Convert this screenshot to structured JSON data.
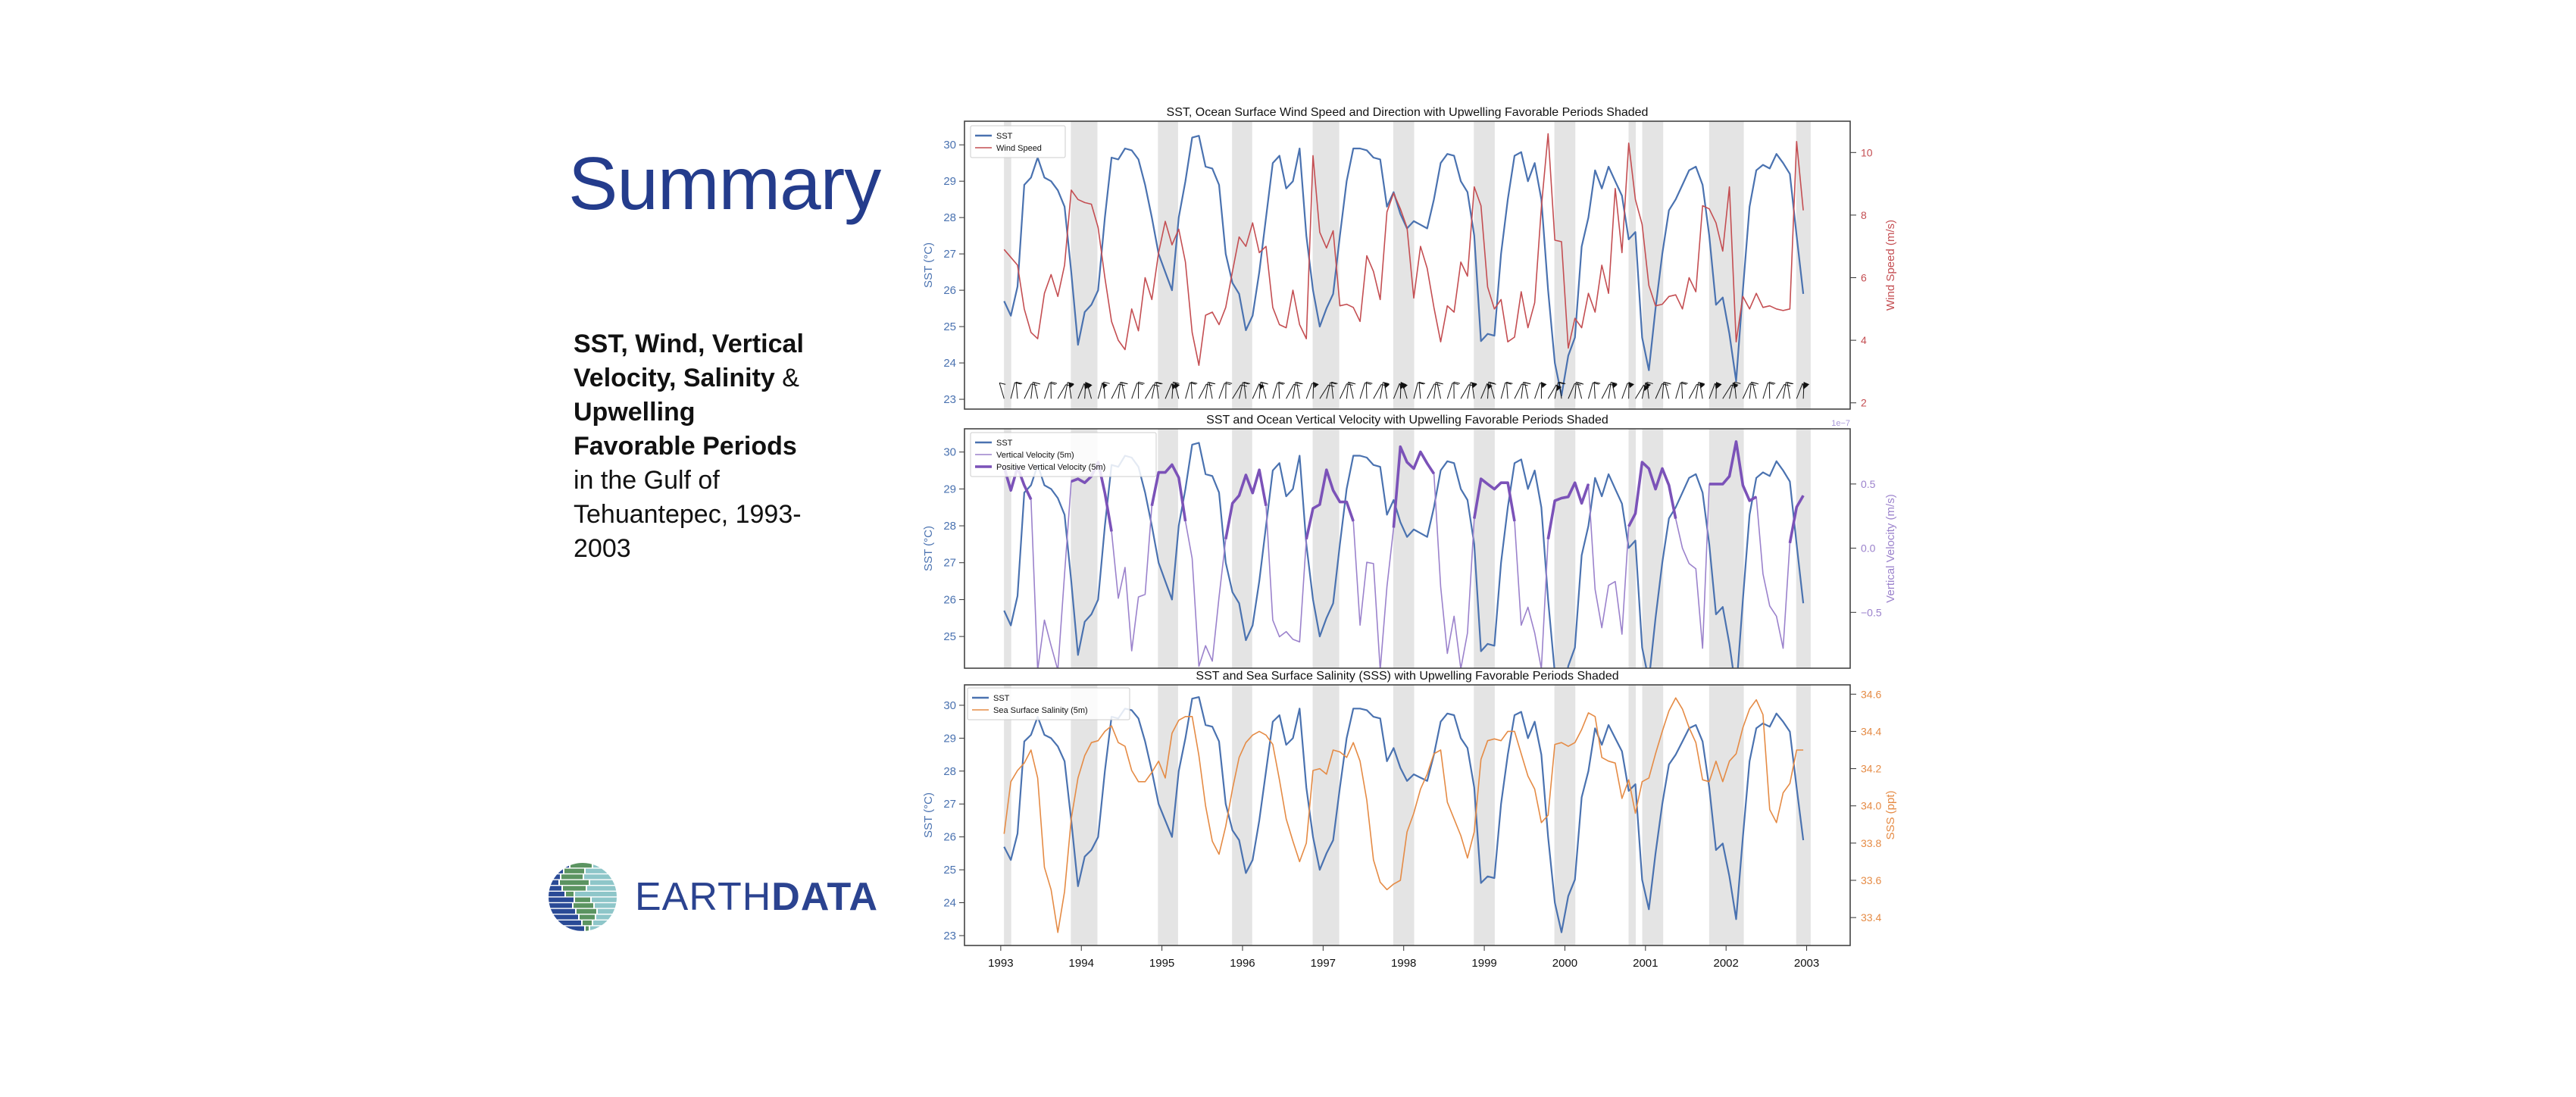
{
  "slide": {
    "title": "Summary",
    "subtitle_bold_1": "SST, Wind, Vertical Velocity, Salinity",
    "subtitle_plain_1": " & ",
    "subtitle_bold_2": "Upwelling Favorable Periods",
    "subtitle_plain_2": " in the Gulf of Tehuantepec, 1993-2003"
  },
  "logo": {
    "text_light": "EARTH",
    "text_bold": "DATA",
    "icon": "earth-globe-stripes-icon"
  },
  "colors": {
    "title": "#243c8c",
    "sst": "#4a72b0",
    "wind": "#c44e52",
    "vv_thin": "#9b82cc",
    "vv_thick": "#7b52b8",
    "sss": "#e58b45",
    "shade": "#e4e4e4"
  },
  "chart_data": [
    {
      "type": "line",
      "title": "SST, Ocean Surface Wind Speed and Direction with Upwelling Favorable Periods Shaded",
      "time": {
        "start": "1993-01",
        "step": "monthly"
      },
      "xlim": [
        1992.55,
        2003.54
      ],
      "x_tick_labels": [],
      "grid": false,
      "legend": "top-left",
      "wind_barbs": true,
      "shaded_periods": [
        [
          1993.04,
          1993.13
        ],
        [
          1993.87,
          1994.2
        ],
        [
          1994.95,
          1995.2
        ],
        [
          1995.87,
          1996.12
        ],
        [
          1996.87,
          1997.2
        ],
        [
          1997.87,
          1998.13
        ],
        [
          1998.87,
          1999.13
        ],
        [
          1999.87,
          2000.13
        ],
        [
          2000.79,
          2000.88
        ],
        [
          2000.96,
          2001.22
        ],
        [
          2001.79,
          2002.22
        ],
        [
          2002.87,
          2003.05
        ]
      ],
      "left_axis": {
        "label": "SST (°C)",
        "ylim": [
          22.73,
          30.65
        ],
        "tick_labels": [
          "23",
          "24",
          "25",
          "26",
          "27",
          "28",
          "29",
          "30"
        ]
      },
      "right_axis": {
        "label": "Wind Speed (m/s)",
        "ylim": [
          1.8,
          11.0
        ],
        "tick_labels": [
          "2",
          "4",
          "6",
          "8",
          "10"
        ],
        "offset_label": ""
      },
      "series": [
        {
          "name": "SST",
          "axis": "left",
          "color": "#4a72b0",
          "values": [
            25.7,
            25.3,
            26.1,
            28.9,
            29.1,
            29.65,
            29.1,
            29.0,
            28.75,
            28.3,
            26.5,
            24.5,
            25.4,
            25.6,
            26.0,
            28.0,
            29.65,
            29.6,
            29.9,
            29.85,
            29.6,
            28.9,
            28.0,
            27.0,
            26.5,
            26.0,
            28.0,
            29.0,
            30.2,
            30.25,
            29.4,
            29.35,
            28.9,
            27.0,
            26.2,
            25.9,
            24.9,
            25.3,
            26.5,
            28.0,
            29.5,
            29.7,
            28.8,
            29.0,
            29.9,
            27.5,
            26.0,
            25.0,
            25.5,
            25.9,
            27.5,
            29.0,
            29.9,
            29.9,
            29.85,
            29.65,
            29.6,
            28.3,
            28.7,
            28.1,
            27.7,
            27.9,
            27.8,
            27.7,
            28.5,
            29.5,
            29.75,
            29.7,
            29.0,
            28.7,
            27.5,
            24.6,
            24.8,
            24.75,
            27.0,
            28.5,
            29.7,
            29.8,
            29.0,
            29.5,
            28.5,
            26.0,
            24.0,
            23.1,
            24.2,
            24.7,
            27.2,
            28.0,
            29.3,
            28.8,
            29.4,
            29.0,
            28.6,
            27.4,
            27.6,
            24.7,
            23.8,
            25.5,
            27.0,
            28.2,
            28.5,
            28.9,
            29.3,
            29.4,
            28.9,
            27.5,
            25.6,
            25.8,
            24.8,
            23.5,
            26.0,
            28.3,
            29.3,
            29.45,
            29.35,
            29.75,
            29.5,
            29.2,
            27.5,
            25.9
          ]
        },
        {
          "name": "Wind Speed",
          "axis": "right",
          "color": "#c44e52",
          "values": [
            6.9,
            6.65,
            6.4,
            5.0,
            4.25,
            4.05,
            5.5,
            6.1,
            5.4,
            6.4,
            8.8,
            8.5,
            8.4,
            8.35,
            7.6,
            6.0,
            4.6,
            4.0,
            3.7,
            5.0,
            4.3,
            6.0,
            5.3,
            6.8,
            7.8,
            7.05,
            7.55,
            6.5,
            4.25,
            3.2,
            4.8,
            4.9,
            4.5,
            5.05,
            6.2,
            7.3,
            7.0,
            7.75,
            6.8,
            7.0,
            5.05,
            4.5,
            4.4,
            5.6,
            4.5,
            4.05,
            9.9,
            7.45,
            6.95,
            7.5,
            5.1,
            5.15,
            5.05,
            4.6,
            6.7,
            6.2,
            5.3,
            8.1,
            8.7,
            8.2,
            7.6,
            5.35,
            7.0,
            6.3,
            5.05,
            3.95,
            5.1,
            4.9,
            6.5,
            6.05,
            8.9,
            8.3,
            5.7,
            5.0,
            5.3,
            3.95,
            4.1,
            5.55,
            4.4,
            5.2,
            8.25,
            10.6,
            7.2,
            7.15,
            3.75,
            4.7,
            4.4,
            5.5,
            4.9,
            6.4,
            5.5,
            8.85,
            6.8,
            10.3,
            8.5,
            7.7,
            5.75,
            5.1,
            5.15,
            5.4,
            5.45,
            5.0,
            6.0,
            5.55,
            8.3,
            8.2,
            7.75,
            6.85,
            8.9,
            3.95,
            5.4,
            5.0,
            5.5,
            5.05,
            5.1,
            5.0,
            4.95,
            5.0,
            10.35,
            8.15
          ]
        }
      ]
    },
    {
      "type": "line",
      "title": "SST and Ocean Vertical Velocity with Upwelling Favorable Periods Shaded",
      "time": {
        "start": "1993-01",
        "step": "monthly"
      },
      "xlim": [
        1992.55,
        2003.54
      ],
      "x_tick_labels": [],
      "grid": false,
      "legend": "top-left",
      "shaded_periods": [
        [
          1993.04,
          1993.13
        ],
        [
          1993.87,
          1994.2
        ],
        [
          1994.95,
          1995.2
        ],
        [
          1995.87,
          1996.12
        ],
        [
          1996.87,
          1997.2
        ],
        [
          1997.87,
          1998.13
        ],
        [
          1998.87,
          1999.13
        ],
        [
          1999.87,
          2000.13
        ],
        [
          2000.79,
          2000.88
        ],
        [
          2000.96,
          2001.22
        ],
        [
          2001.79,
          2002.22
        ],
        [
          2002.87,
          2003.05
        ]
      ],
      "left_axis": {
        "label": "SST (°C)",
        "ylim": [
          24.14,
          30.63
        ],
        "tick_labels": [
          "25",
          "26",
          "27",
          "28",
          "29",
          "30"
        ]
      },
      "right_axis": {
        "label": "Vertical Velocity (m/s)",
        "ylim": [
          -0.935,
          0.93
        ],
        "tick_labels": [
          "0.5",
          "0.0",
          "−0.5"
        ],
        "offset_label": "1e−7"
      },
      "series": [
        {
          "name": "SST",
          "axis": "left",
          "color": "#4a72b0",
          "values": [
            25.7,
            25.3,
            26.1,
            28.9,
            29.1,
            29.65,
            29.1,
            29.0,
            28.75,
            28.3,
            26.5,
            24.5,
            25.4,
            25.6,
            26.0,
            28.0,
            29.65,
            29.6,
            29.9,
            29.85,
            29.6,
            28.9,
            28.0,
            27.0,
            26.5,
            26.0,
            28.0,
            29.0,
            30.2,
            30.25,
            29.4,
            29.35,
            28.9,
            27.0,
            26.2,
            25.9,
            24.9,
            25.3,
            26.5,
            28.0,
            29.5,
            29.7,
            28.8,
            29.0,
            29.9,
            27.5,
            26.0,
            25.0,
            25.5,
            25.9,
            27.5,
            29.0,
            29.9,
            29.9,
            29.85,
            29.65,
            29.6,
            28.3,
            28.7,
            28.1,
            27.7,
            27.9,
            27.8,
            27.7,
            28.5,
            29.5,
            29.75,
            29.7,
            29.0,
            28.7,
            27.5,
            24.6,
            24.8,
            24.75,
            27.0,
            28.5,
            29.7,
            29.8,
            29.0,
            29.5,
            28.5,
            26.0,
            24.0,
            23.1,
            24.2,
            24.7,
            27.2,
            28.0,
            29.3,
            28.8,
            29.4,
            29.0,
            28.6,
            27.4,
            27.6,
            24.7,
            23.8,
            25.5,
            27.0,
            28.2,
            28.5,
            28.9,
            29.3,
            29.4,
            28.9,
            27.5,
            25.6,
            25.8,
            24.8,
            23.5,
            26.0,
            28.3,
            29.3,
            29.45,
            29.35,
            29.75,
            29.5,
            29.2,
            27.5,
            25.9
          ]
        },
        {
          "name": "Vertical Velocity (5m)",
          "axis": "right",
          "color": "#9b82cc",
          "values": [
            0.63,
            0.45,
            0.63,
            0.49,
            0.38,
            -0.95,
            -0.56,
            -0.76,
            -0.95,
            -0.2,
            0.52,
            0.54,
            0.51,
            0.56,
            0.67,
            0.43,
            0.13,
            -0.39,
            -0.15,
            -0.8,
            -0.38,
            -0.36,
            0.33,
            0.59,
            0.59,
            0.65,
            0.55,
            0.21,
            -0.08,
            -0.92,
            -0.76,
            -0.88,
            -0.38,
            0.07,
            0.35,
            0.41,
            0.57,
            0.43,
            0.61,
            0.33,
            -0.56,
            -0.69,
            -0.65,
            -0.71,
            -0.73,
            0.07,
            0.31,
            0.34,
            0.61,
            0.45,
            0.36,
            0.36,
            0.21,
            -0.6,
            -0.11,
            -0.12,
            -0.95,
            -0.3,
            0.16,
            0.79,
            0.67,
            0.62,
            0.75,
            0.66,
            0.58,
            -0.3,
            -0.82,
            -0.53,
            -0.94,
            -0.66,
            0.23,
            0.54,
            0.5,
            0.46,
            0.51,
            0.51,
            0.21,
            -0.6,
            -0.46,
            -0.66,
            -0.94,
            0.07,
            0.37,
            0.39,
            0.4,
            0.51,
            0.35,
            0.5,
            -0.32,
            -0.62,
            -0.29,
            -0.26,
            -0.67,
            0.17,
            0.27,
            0.67,
            0.62,
            0.46,
            0.62,
            0.49,
            0.23,
            0.0,
            -0.12,
            -0.16,
            -0.78,
            0.5,
            0.5,
            0.5,
            0.56,
            0.83,
            0.49,
            0.37,
            0.4,
            -0.2,
            -0.45,
            -0.53,
            -0.78,
            0.04,
            0.32,
            0.41
          ]
        },
        {
          "name": "Positive Vertical Velocity (5m)",
          "axis": "right",
          "color": "#7b52b8",
          "derived_from": "Vertical Velocity (5m)",
          "condition": "> 0"
        }
      ]
    },
    {
      "type": "line",
      "title": "SST and Sea Surface Salinity (SSS) with Upwelling Favorable Periods Shaded",
      "time": {
        "start": "1993-01",
        "step": "monthly"
      },
      "xlim": [
        1992.55,
        2003.54
      ],
      "x_tick_labels": [
        "1993",
        "1994",
        "1995",
        "1996",
        "1997",
        "1998",
        "1999",
        "2000",
        "2001",
        "2002",
        "2003"
      ],
      "grid": false,
      "legend": "top-left",
      "shaded_periods": [
        [
          1993.04,
          1993.13
        ],
        [
          1993.87,
          1994.2
        ],
        [
          1994.95,
          1995.2
        ],
        [
          1995.87,
          1996.12
        ],
        [
          1996.87,
          1997.2
        ],
        [
          1997.87,
          1998.13
        ],
        [
          1998.87,
          1999.13
        ],
        [
          1999.87,
          2000.13
        ],
        [
          2000.79,
          2000.88
        ],
        [
          2000.96,
          2001.22
        ],
        [
          2001.79,
          2002.22
        ],
        [
          2002.87,
          2003.05
        ]
      ],
      "left_axis": {
        "label": "SST (°C)",
        "ylim": [
          22.7,
          30.62
        ],
        "tick_labels": [
          "23",
          "24",
          "25",
          "26",
          "27",
          "28",
          "29",
          "30"
        ]
      },
      "right_axis": {
        "label": "SSS (ppt)",
        "ylim": [
          33.25,
          34.65
        ],
        "tick_labels": [
          "33.4",
          "33.6",
          "33.8",
          "34.0",
          "34.2",
          "34.4",
          "34.6"
        ],
        "offset_label": ""
      },
      "series": [
        {
          "name": "SST",
          "axis": "left",
          "color": "#4a72b0",
          "values": [
            25.7,
            25.3,
            26.1,
            28.9,
            29.1,
            29.65,
            29.1,
            29.0,
            28.75,
            28.3,
            26.5,
            24.5,
            25.4,
            25.6,
            26.0,
            28.0,
            29.65,
            29.6,
            29.9,
            29.85,
            29.6,
            28.9,
            28.0,
            27.0,
            26.5,
            26.0,
            28.0,
            29.0,
            30.2,
            30.25,
            29.4,
            29.35,
            28.9,
            27.0,
            26.2,
            25.9,
            24.9,
            25.3,
            26.5,
            28.0,
            29.5,
            29.7,
            28.8,
            29.0,
            29.9,
            27.5,
            26.0,
            25.0,
            25.5,
            25.9,
            27.5,
            29.0,
            29.9,
            29.9,
            29.85,
            29.65,
            29.6,
            28.3,
            28.7,
            28.1,
            27.7,
            27.9,
            27.8,
            27.7,
            28.5,
            29.5,
            29.75,
            29.7,
            29.0,
            28.7,
            27.5,
            24.6,
            24.8,
            24.75,
            27.0,
            28.5,
            29.7,
            29.8,
            29.0,
            29.5,
            28.5,
            26.0,
            24.0,
            23.1,
            24.2,
            24.7,
            27.2,
            28.0,
            29.3,
            28.8,
            29.4,
            29.0,
            28.6,
            27.4,
            27.6,
            24.7,
            23.8,
            25.5,
            27.0,
            28.2,
            28.5,
            28.9,
            29.3,
            29.4,
            28.9,
            27.5,
            25.6,
            25.8,
            24.8,
            23.5,
            26.0,
            28.3,
            29.3,
            29.45,
            29.35,
            29.75,
            29.5,
            29.2,
            27.5,
            25.9
          ]
        },
        {
          "name": "Sea Surface Salinity (5m)",
          "axis": "right",
          "color": "#e58b45",
          "values": [
            33.85,
            34.13,
            34.19,
            34.23,
            34.3,
            34.15,
            33.67,
            33.55,
            33.32,
            33.54,
            33.93,
            34.15,
            34.27,
            34.34,
            34.35,
            34.4,
            34.43,
            34.34,
            34.32,
            34.19,
            34.13,
            34.13,
            34.18,
            34.24,
            34.15,
            34.39,
            34.46,
            34.48,
            34.48,
            34.27,
            34.0,
            33.81,
            33.74,
            33.89,
            34.09,
            34.26,
            34.34,
            34.38,
            34.4,
            34.38,
            34.33,
            34.14,
            33.93,
            33.81,
            33.7,
            33.8,
            34.19,
            34.2,
            34.17,
            34.3,
            34.29,
            34.26,
            34.34,
            34.24,
            34.03,
            33.71,
            33.59,
            33.55,
            33.58,
            33.6,
            33.86,
            33.96,
            34.09,
            34.17,
            34.28,
            34.3,
            34.02,
            33.93,
            33.84,
            33.72,
            33.86,
            34.25,
            34.35,
            34.36,
            34.35,
            34.4,
            34.4,
            34.28,
            34.16,
            34.09,
            33.91,
            33.95,
            34.33,
            34.34,
            34.32,
            34.34,
            34.41,
            34.5,
            34.48,
            34.26,
            34.24,
            34.23,
            34.04,
            34.14,
            33.96,
            34.13,
            34.15,
            34.28,
            34.4,
            34.51,
            34.58,
            34.52,
            34.42,
            34.34,
            34.14,
            34.13,
            34.24,
            34.13,
            34.24,
            34.28,
            34.42,
            34.52,
            34.57,
            34.49,
            33.98,
            33.91,
            34.07,
            34.12,
            34.3,
            34.3
          ]
        }
      ]
    }
  ]
}
